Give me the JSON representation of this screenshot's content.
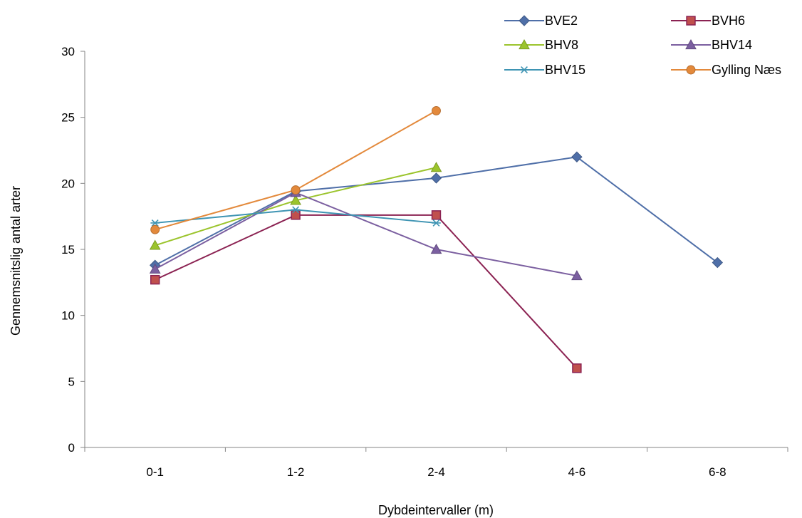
{
  "chart_data": {
    "type": "line",
    "title": "",
    "xlabel": "Dybdeintervaller (m)",
    "ylabel": "Gennemsnitslig antal arter",
    "categories": [
      "0-1",
      "1-2",
      "2-4",
      "4-6",
      "6-8"
    ],
    "ylim": [
      0,
      30
    ],
    "yticks": [
      0,
      5,
      10,
      15,
      20,
      25,
      30
    ],
    "grid": false,
    "legend_position": "top-right",
    "series": [
      {
        "name": "BVE2",
        "values": [
          13.8,
          19.4,
          20.4,
          22.0,
          14.0
        ],
        "color": "#4F6FA8",
        "marker": "diamond"
      },
      {
        "name": "BVH6",
        "values": [
          12.7,
          17.6,
          17.6,
          6.0,
          null
        ],
        "color": "#8B2252",
        "marker": "square",
        "marker_fill": "#C0504D"
      },
      {
        "name": "BHV8",
        "values": [
          15.3,
          18.7,
          21.2,
          null,
          null
        ],
        "color": "#9BC42C",
        "marker": "triangle"
      },
      {
        "name": "BHV14",
        "values": [
          13.5,
          19.3,
          15.0,
          13.0,
          null
        ],
        "color": "#7B5FA0",
        "marker": "triangle"
      },
      {
        "name": "BHV15",
        "values": [
          17.0,
          18.0,
          17.0,
          null,
          null
        ],
        "color": "#3E94B3",
        "marker": "star"
      },
      {
        "name": "Gylling Næs",
        "values": [
          16.5,
          19.5,
          25.5,
          null,
          null
        ],
        "color": "#E3893B",
        "marker": "circle"
      }
    ]
  }
}
